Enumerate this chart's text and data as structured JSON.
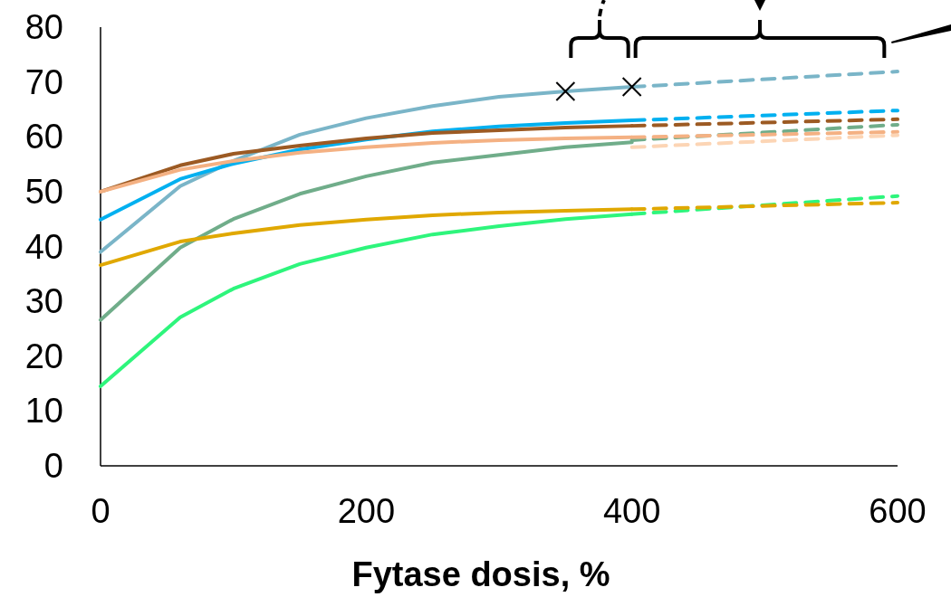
{
  "chart_data": {
    "type": "line",
    "xlabel": "Fytase dosis, %",
    "xlim": [
      0,
      600
    ],
    "xticks": [
      0,
      200,
      400,
      600
    ],
    "ylim": [
      0,
      80
    ],
    "yticks": [
      0,
      10,
      20,
      30,
      40,
      50,
      60,
      70,
      80
    ],
    "grid": false,
    "marker": "none",
    "series": [
      {
        "color": "#7ab5c8",
        "x": [
          0,
          60,
          100,
          150,
          200,
          250,
          300,
          350,
          400
        ],
        "values": [
          39,
          51,
          55.6,
          60.4,
          63.4,
          65.6,
          67.3,
          68.3,
          69.1
        ]
      },
      {
        "color": "#00b0f0",
        "x": [
          0,
          60,
          100,
          150,
          200,
          250,
          300,
          350,
          400
        ],
        "values": [
          44.9,
          52.3,
          55.1,
          57.7,
          59.5,
          61,
          61.9,
          62.5,
          63
        ]
      },
      {
        "color": "#9c5a23",
        "x": [
          0,
          60,
          100,
          150,
          200,
          250,
          300,
          350,
          400
        ],
        "values": [
          50,
          54.8,
          56.9,
          58.4,
          59.7,
          60.7,
          61.2,
          61.7,
          62
        ]
      },
      {
        "color": "#f4b183",
        "x": [
          0,
          60,
          100,
          150,
          200,
          250,
          300,
          350,
          400
        ],
        "values": [
          50,
          54,
          55.6,
          57.1,
          58.1,
          58.9,
          59.4,
          59.7,
          59.9
        ]
      },
      {
        "color": "#70ad8a",
        "x": [
          0,
          60,
          100,
          150,
          200,
          250,
          300,
          350,
          400
        ],
        "values": [
          26.6,
          39.8,
          45,
          49.6,
          52.8,
          55.3,
          56.7,
          58.1,
          59
        ]
      },
      {
        "color": "#e0a800",
        "x": [
          0,
          60,
          100,
          150,
          200,
          250,
          300,
          350,
          400
        ],
        "values": [
          36.6,
          40.9,
          42.4,
          43.9,
          44.9,
          45.7,
          46.2,
          46.5,
          46.8
        ]
      },
      {
        "color": "#2ef57c",
        "x": [
          0,
          60,
          100,
          150,
          200,
          250,
          300,
          350,
          400
        ],
        "values": [
          14.5,
          27.1,
          32.3,
          36.8,
          39.8,
          42.2,
          43.7,
          45,
          45.9
        ]
      },
      {
        "color": "#7ab5c8",
        "line_style": "dashed",
        "x": [
          400,
          600
        ],
        "values": [
          69.1,
          71.9
        ]
      },
      {
        "color": "#00b0f0",
        "line_style": "dashed",
        "x": [
          400,
          600
        ],
        "values": [
          63,
          64.8
        ]
      },
      {
        "color": "#9c5a23",
        "line_style": "dashed",
        "x": [
          400,
          600
        ],
        "values": [
          62,
          63.2
        ]
      },
      {
        "color": "#70ad8a",
        "line_style": "dashed",
        "x": [
          400,
          600
        ],
        "values": [
          59.4,
          62.2
        ]
      },
      {
        "color": "#f4b183",
        "line_style": "dashed",
        "x": [
          400,
          600
        ],
        "values": [
          59.9,
          60.9
        ]
      },
      {
        "color": "#fcd5b5",
        "line_style": "dashed",
        "x": [
          400,
          600
        ],
        "values": [
          58.1,
          60.3
        ]
      },
      {
        "color": "#2ef57c",
        "line_style": "dashed",
        "x": [
          400,
          600
        ],
        "values": [
          45.9,
          49.2
        ]
      },
      {
        "color": "#e0a800",
        "line_style": "dashed",
        "x": [
          400,
          600
        ],
        "values": [
          46.8,
          48
        ]
      },
      {
        "type": "scatter",
        "marker": "cross",
        "color": "#000000",
        "x": [
          350,
          400
        ],
        "values": [
          68.3,
          69.1
        ]
      }
    ]
  }
}
